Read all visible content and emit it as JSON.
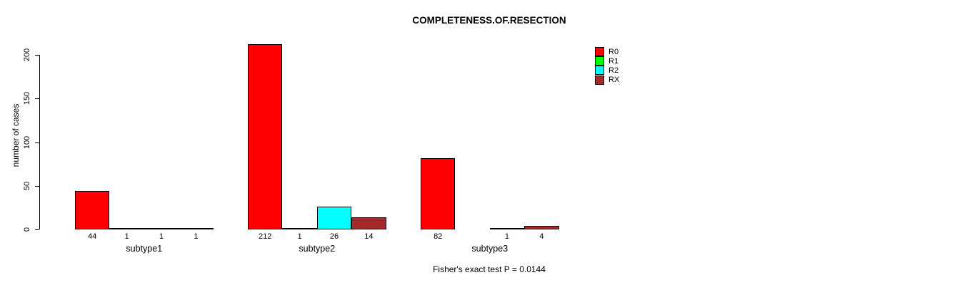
{
  "chart_data": {
    "type": "bar",
    "title": "COMPLETENESS.OF.RESECTION",
    "ylabel": "number of cases",
    "xlabel": "",
    "ylim": [
      0,
      200
    ],
    "yticks": [
      "0",
      "50",
      "100",
      "150",
      "200"
    ],
    "grid": false,
    "legend_position": "top-right-inside",
    "categories": [
      "subtype1",
      "subtype2",
      "subtype3"
    ],
    "legend": [
      {
        "label": "R0",
        "color": "#ff0000"
      },
      {
        "label": "R1",
        "color": "#00ff00"
      },
      {
        "label": "R2",
        "color": "#00ffff"
      },
      {
        "label": "RX",
        "color": "#a52a2a"
      }
    ],
    "series": [
      {
        "name": "R0",
        "color": "#ff0000",
        "values": [
          44,
          212,
          82
        ],
        "bar_labels": [
          "44",
          "212",
          "82"
        ]
      },
      {
        "name": "R1",
        "color": "#00ff00",
        "values": [
          1,
          1,
          null
        ],
        "bar_labels": [
          "1",
          "1",
          ""
        ]
      },
      {
        "name": "R2",
        "color": "#00ffff",
        "values": [
          1,
          26,
          1
        ],
        "bar_labels": [
          "1",
          "26",
          "1"
        ]
      },
      {
        "name": "RX",
        "color": "#a52a2a",
        "values": [
          1,
          14,
          4
        ],
        "bar_labels": [
          "1",
          "14",
          "4"
        ]
      }
    ],
    "annotation": "Fisher's exact test P = 0.0144",
    "axis_color": "#000000",
    "bar_outline_color": "#000000"
  }
}
